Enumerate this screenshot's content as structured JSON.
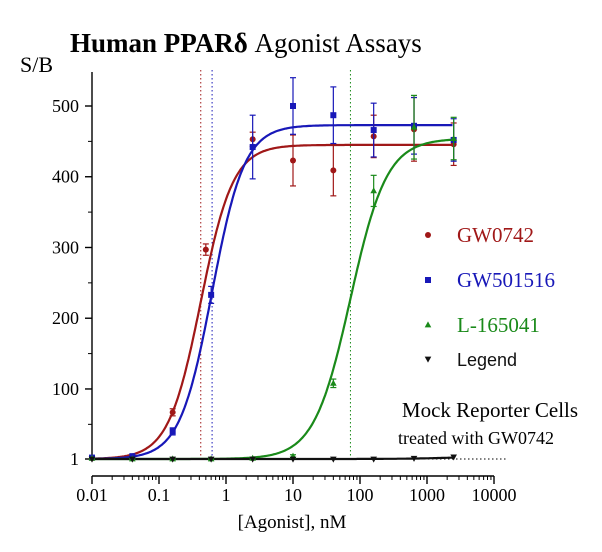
{
  "chart_data": {
    "type": "scatter",
    "title_bold": "Human PPARδ",
    "title_rest": " Agonist Assays",
    "ylabel": "S/B",
    "xlabel": "[Agonist], nM",
    "x_scale": "log",
    "xlim": [
      0.01,
      10000
    ],
    "ylim": [
      0,
      520
    ],
    "x_ticks": [
      0.01,
      0.1,
      1,
      10,
      100,
      1000,
      10000
    ],
    "x_tick_labels": [
      "0.01",
      "0.1",
      "1",
      "10",
      "100",
      "1000",
      "10000"
    ],
    "y_ticks": [
      1,
      100,
      200,
      300,
      400,
      500
    ],
    "y_tick_labels": [
      "1",
      "100",
      "200",
      "300",
      "400",
      "500"
    ],
    "baseline_y": 1,
    "series": [
      {
        "name": "GW0742",
        "color": "#a01818",
        "marker": "circle",
        "ec50": 0.42,
        "x": [
          0.01,
          0.04,
          0.16,
          0.5,
          2.5,
          10,
          40,
          160,
          640,
          2500
        ],
        "y": [
          2,
          4,
          67,
          297,
          453,
          423,
          409,
          457,
          467,
          446
        ],
        "err": [
          2,
          2,
          5,
          8,
          10,
          36,
          36,
          30,
          45,
          30
        ],
        "fit": {
          "bottom": 1,
          "top": 445,
          "ec50": 0.42,
          "hill": 1.8
        }
      },
      {
        "name": "GW501516",
        "color": "#1818b8",
        "marker": "square",
        "ec50": 0.62,
        "x": [
          0.01,
          0.04,
          0.16,
          0.6,
          2.5,
          10,
          40,
          160,
          640,
          2500
        ],
        "y": [
          3,
          5,
          40,
          233,
          442,
          500,
          487,
          466,
          472,
          452
        ],
        "err": [
          2,
          2,
          5,
          12,
          45,
          40,
          40,
          38,
          40,
          30
        ],
        "fit": {
          "bottom": 1,
          "top": 473,
          "ec50": 0.62,
          "hill": 1.8
        }
      },
      {
        "name": "L-165041",
        "color": "#1a8a1a",
        "marker": "triangle-up",
        "ec50": 72,
        "x": [
          0.01,
          0.04,
          0.16,
          0.6,
          2.5,
          10,
          40,
          160,
          640,
          2500
        ],
        "y": [
          2,
          1,
          1,
          1,
          2,
          5,
          108,
          380,
          470,
          454
        ],
        "err": [
          1,
          1,
          1,
          1,
          1,
          2,
          6,
          22,
          45,
          30
        ],
        "fit": {
          "bottom": 1,
          "top": 454,
          "ec50": 72,
          "hill": 1.6
        }
      },
      {
        "name": "Legend",
        "color": "#111111",
        "marker": "triangle-down",
        "x": [
          0.01,
          0.04,
          0.16,
          0.6,
          2.5,
          10,
          40,
          160,
          640,
          2500
        ],
        "y": [
          1,
          1,
          1,
          1,
          1,
          1,
          1,
          1,
          2,
          4
        ],
        "err": [
          0,
          0,
          0,
          0,
          0,
          0,
          0,
          0,
          0,
          0
        ],
        "fit": {
          "bottom": 1,
          "top": 5,
          "ec50": 2500,
          "hill": 1.2
        }
      }
    ],
    "annotation_line1": "Mock Reporter Cells",
    "annotation_line2": "treated with GW0742",
    "legend_position": "right"
  }
}
